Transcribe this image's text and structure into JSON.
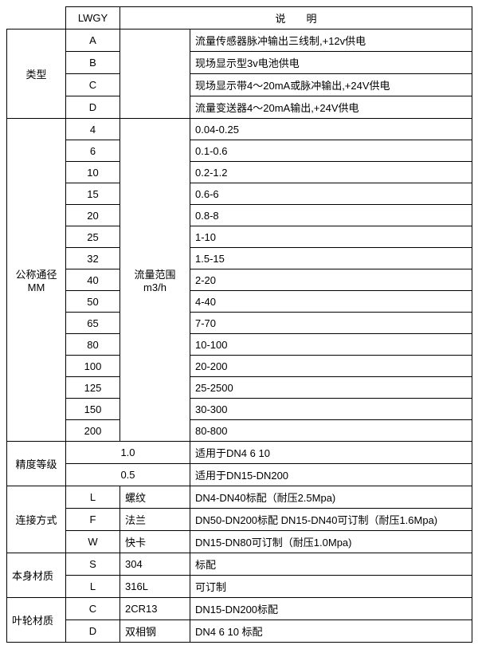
{
  "header": {
    "code": "LWGY",
    "desc_label": "说　　明"
  },
  "type": {
    "label": "类型",
    "rows": [
      {
        "code": "A",
        "desc": "流量传感器脉冲输出三线制,+12v供电"
      },
      {
        "code": "B",
        "desc": "现场显示型3v电池供电"
      },
      {
        "code": "C",
        "desc": "现场显示带4～20mA或脉冲输出,+24V供电"
      },
      {
        "code": "D",
        "desc": "流量变送器4～20mA输出,+24V供电"
      }
    ]
  },
  "dn": {
    "label_line1": "公称通径",
    "label_line2": "MM",
    "range_line1": "流量范围",
    "range_line2": "m3/h",
    "rows": [
      {
        "code": "4",
        "val": "0.04-0.25"
      },
      {
        "code": "6",
        "val": "0.1-0.6"
      },
      {
        "code": "10",
        "val": "0.2-1.2"
      },
      {
        "code": "15",
        "val": "0.6-6"
      },
      {
        "code": "20",
        "val": "0.8-8"
      },
      {
        "code": "25",
        "val": "1-10"
      },
      {
        "code": "32",
        "val": "1.5-15"
      },
      {
        "code": "40",
        "val": "2-20"
      },
      {
        "code": "50",
        "val": "4-40"
      },
      {
        "code": "65",
        "val": "7-70"
      },
      {
        "code": "80",
        "val": "10-100"
      },
      {
        "code": "100",
        "val": "20-200"
      },
      {
        "code": "125",
        "val": "25-2500"
      },
      {
        "code": "150",
        "val": "30-300"
      },
      {
        "code": "200",
        "val": "80-800"
      }
    ]
  },
  "accuracy": {
    "label": "精度等级",
    "rows": [
      {
        "grade": "1.0",
        "desc": "适用于DN4 6 10"
      },
      {
        "grade": "0.5",
        "desc": "适用于DN15-DN200"
      }
    ]
  },
  "connection": {
    "label": "连接方式",
    "rows": [
      {
        "code": "L",
        "name": "螺纹",
        "desc": "DN4-DN40标配（耐压2.5Mpa)"
      },
      {
        "code": "F",
        "name": "法兰",
        "desc": "DN50-DN200标配 DN15-DN40可订制（耐压1.6Mpa)"
      },
      {
        "code": "W",
        "name": "快卡",
        "desc": "DN15-DN80可订制（耐压1.0Mpa)"
      }
    ]
  },
  "body_material": {
    "label": "本身材质",
    "rows": [
      {
        "code": "S",
        "name": "304",
        "desc": "标配"
      },
      {
        "code": "L",
        "name": "316L",
        "desc": "可订制"
      }
    ]
  },
  "impeller_material": {
    "label": "叶轮材质",
    "rows": [
      {
        "code": "C",
        "name": "2CR13",
        "desc": "DN15-DN200标配"
      },
      {
        "code": "D",
        "name": "双相钢",
        "desc": "DN4 6 10 标配"
      }
    ]
  }
}
